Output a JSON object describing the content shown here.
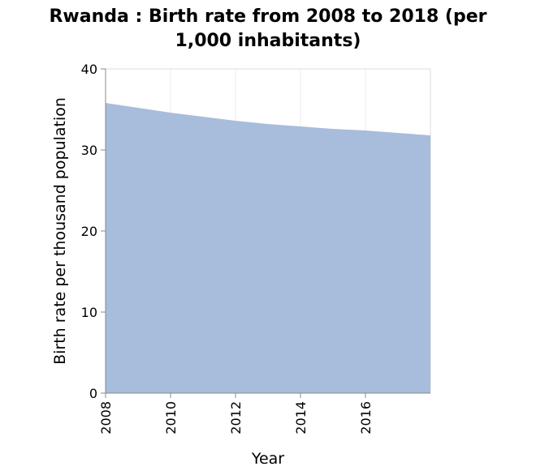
{
  "chart_data": {
    "type": "area",
    "title_lines": [
      "Rwanda : Birth rate from 2008 to 2018 (per",
      "1,000 inhabitants)"
    ],
    "xlabel": "Year",
    "ylabel": "Birth rate per thousand population",
    "xlim": [
      2008,
      2018
    ],
    "ylim": [
      0,
      40
    ],
    "x_ticks": [
      2008,
      2010,
      2012,
      2014,
      2016
    ],
    "y_ticks": [
      0,
      10,
      20,
      30,
      40
    ],
    "x": [
      2008,
      2009,
      2010,
      2011,
      2012,
      2013,
      2014,
      2015,
      2016,
      2017,
      2018
    ],
    "series": [
      {
        "values": [
          35.8,
          35.2,
          34.6,
          34.1,
          33.6,
          33.2,
          32.9,
          32.6,
          32.4,
          32.1,
          31.8
        ],
        "color": "#a8bcdb"
      }
    ],
    "grid": true
  }
}
